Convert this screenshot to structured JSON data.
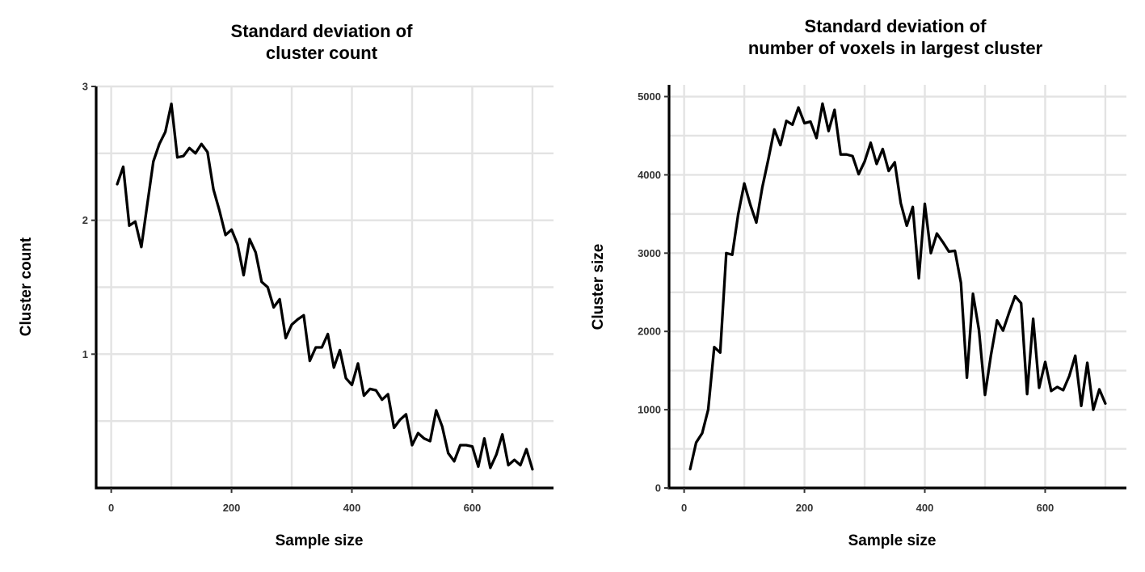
{
  "chart_data": [
    {
      "type": "line",
      "title": [
        "Standard deviation of",
        "cluster count"
      ],
      "xlabel": "Sample size",
      "ylabel": "Cluster count",
      "xlim": [
        -25,
        735
      ],
      "ylim": [
        0,
        3
      ],
      "x_ticks": [
        0,
        200,
        400,
        600
      ],
      "x_tick_labels": [
        "0",
        "200",
        "400",
        "600"
      ],
      "y_ticks": [
        1,
        2,
        3
      ],
      "y_tick_labels": [
        "1",
        "2",
        "3"
      ],
      "y_minor": [
        0.5,
        1.5,
        2.5
      ],
      "grid": true,
      "series": [
        {
          "x": [
            10,
            20,
            30,
            40,
            50,
            60,
            70,
            80,
            90,
            100,
            110,
            120,
            130,
            140,
            150,
            160,
            170,
            180,
            190,
            200,
            210,
            220,
            230,
            240,
            250,
            260,
            270,
            280,
            290,
            300,
            310,
            320,
            330,
            340,
            350,
            360,
            370,
            380,
            390,
            400,
            410,
            420,
            430,
            440,
            450,
            460,
            470,
            480,
            490,
            500,
            510,
            520,
            530,
            540,
            550,
            560,
            570,
            580,
            590,
            600,
            610,
            620,
            630,
            640,
            650,
            660,
            670,
            680,
            690,
            700
          ],
          "values": [
            2.27,
            2.4,
            1.96,
            1.99,
            1.8,
            2.12,
            2.44,
            2.57,
            2.66,
            2.87,
            2.47,
            2.48,
            2.54,
            2.5,
            2.57,
            2.51,
            2.23,
            2.07,
            1.89,
            1.93,
            1.82,
            1.59,
            1.86,
            1.76,
            1.54,
            1.5,
            1.35,
            1.41,
            1.12,
            1.22,
            1.26,
            1.29,
            0.95,
            1.05,
            1.05,
            1.15,
            0.9,
            1.03,
            0.82,
            0.77,
            0.93,
            0.69,
            0.74,
            0.73,
            0.66,
            0.7,
            0.45,
            0.51,
            0.55,
            0.32,
            0.41,
            0.37,
            0.35,
            0.58,
            0.46,
            0.26,
            0.2,
            0.32,
            0.32,
            0.31,
            0.16,
            0.37,
            0.15,
            0.25,
            0.4,
            0.17,
            0.21,
            0.17,
            0.29,
            0.14
          ]
        }
      ]
    },
    {
      "type": "line",
      "title": [
        "Standard deviation of",
        "number of voxels in largest cluster"
      ],
      "xlabel": "Sample size",
      "ylabel": "Cluster size",
      "xlim": [
        -25,
        735
      ],
      "ylim": [
        0,
        5150
      ],
      "x_ticks": [
        0,
        200,
        400,
        600
      ],
      "x_tick_labels": [
        "0",
        "200",
        "400",
        "600"
      ],
      "y_ticks": [
        0,
        1000,
        2000,
        3000,
        4000,
        5000
      ],
      "y_tick_labels": [
        "0",
        "1000",
        "2000",
        "3000",
        "4000",
        "5000"
      ],
      "y_minor": [
        500,
        1500,
        2500,
        3500,
        4500
      ],
      "grid": true,
      "series": [
        {
          "x": [
            10,
            20,
            30,
            40,
            50,
            60,
            70,
            80,
            90,
            100,
            110,
            120,
            130,
            140,
            150,
            160,
            170,
            180,
            190,
            200,
            210,
            220,
            230,
            240,
            250,
            260,
            270,
            280,
            290,
            300,
            310,
            320,
            330,
            340,
            350,
            360,
            370,
            380,
            390,
            400,
            410,
            420,
            430,
            440,
            450,
            460,
            470,
            480,
            490,
            500,
            510,
            520,
            530,
            540,
            550,
            560,
            570,
            580,
            590,
            600,
            610,
            620,
            630,
            640,
            650,
            660,
            670,
            680,
            690,
            700
          ],
          "values": [
            240,
            580,
            700,
            1000,
            1800,
            1730,
            3000,
            2980,
            3500,
            3890,
            3620,
            3390,
            3840,
            4200,
            4580,
            4380,
            4690,
            4640,
            4860,
            4660,
            4680,
            4470,
            4910,
            4560,
            4830,
            4260,
            4260,
            4240,
            4010,
            4170,
            4410,
            4140,
            4330,
            4050,
            4160,
            3640,
            3350,
            3590,
            2680,
            3630,
            3000,
            3250,
            3140,
            3020,
            3030,
            2620,
            1410,
            2480,
            2020,
            1190,
            1700,
            2140,
            2010,
            2240,
            2450,
            2360,
            1200,
            2160,
            1280,
            1610,
            1240,
            1290,
            1250,
            1430,
            1690,
            1050,
            1600,
            1000,
            1260,
            1080
          ]
        }
      ]
    }
  ]
}
